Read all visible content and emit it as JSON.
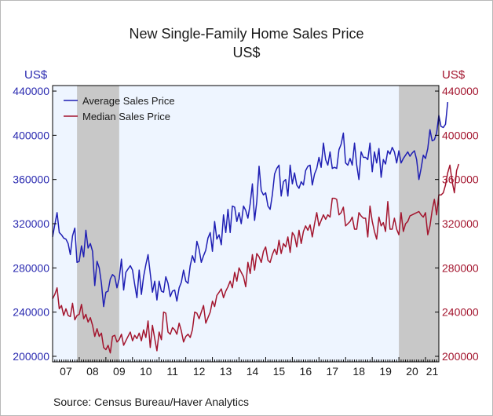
{
  "chart_data": {
    "type": "line",
    "title": "New Single-Family Home Sales Price",
    "subtitle": "US$",
    "ylabel_left": "US$",
    "ylabel_right": "US$",
    "source": "Source:   Census Bureau/Haver Analytics",
    "x_tick_labels": [
      "07",
      "08",
      "09",
      "10",
      "11",
      "12",
      "13",
      "14",
      "15",
      "16",
      "17",
      "18",
      "19",
      "20",
      "21"
    ],
    "y_ticks": [
      200000,
      240000,
      280000,
      320000,
      360000,
      400000,
      440000
    ],
    "ylim": [
      195000,
      445000
    ],
    "xlim": [
      2007.0,
      2021.5
    ],
    "recessions": [
      [
        2007.917,
        2009.5
      ],
      [
        2020.0,
        2021.5
      ]
    ],
    "legend_position": "top-left",
    "grid": false,
    "colors": {
      "average": "#1f1fb4",
      "median": "#a3152e",
      "left_axis": "#2a2ab0",
      "right_axis": "#a3152e",
      "plot_bg": "#eef5ff",
      "recession": "#c8c8c8"
    },
    "start_year": 2007.0,
    "step_years": 0.0833333,
    "series": [
      {
        "name": "Average Sales Price",
        "values": [
          308000,
          319000,
          330000,
          312000,
          310000,
          307000,
          306000,
          302000,
          292000,
          309000,
          316000,
          285000,
          286000,
          300000,
          290000,
          314000,
          298000,
          302000,
          295000,
          264000,
          286000,
          280000,
          266000,
          245000,
          258000,
          259000,
          270000,
          274000,
          272000,
          262000,
          270000,
          288000,
          260000,
          276000,
          279000,
          282000,
          278000,
          265000,
          253000,
          278000,
          256000,
          272000,
          283000,
          292000,
          275000,
          258000,
          268000,
          251000,
          268000,
          259000,
          258000,
          272000,
          266000,
          254000,
          259000,
          260000,
          250000,
          262000,
          267000,
          278000,
          268000,
          266000,
          282000,
          291000,
          285000,
          304000,
          297000,
          285000,
          291000,
          296000,
          307000,
          312000,
          295000,
          322000,
          306000,
          310000,
          301000,
          328000,
          312000,
          333000,
          312000,
          336000,
          335000,
          322000,
          330000,
          320000,
          336000,
          332000,
          325000,
          338000,
          356000,
          323000,
          340000,
          372000,
          350000,
          346000,
          348000,
          336000,
          333000,
          346000,
          365000,
          370000,
          373000,
          345000,
          358000,
          360000,
          345000,
          373000,
          356000,
          366000,
          355000,
          352000,
          358000,
          355000,
          368000,
          372000,
          373000,
          355000,
          365000,
          370000,
          380000,
          371000,
          393000,
          378000,
          373000,
          385000,
          370000,
          371000,
          370000,
          387000,
          392000,
          402000,
          375000,
          373000,
          379000,
          373000,
          393000,
          373000,
          360000,
          385000,
          380000,
          380000,
          378000,
          393000,
          367000,
          385000,
          375000,
          388000,
          362000,
          378000,
          374000,
          386000,
          383000,
          389000,
          385000,
          375000,
          386000,
          375000,
          379000,
          382000,
          385000,
          381000,
          384000,
          386000,
          378000,
          360000,
          370000,
          382000,
          379000,
          388000,
          405000,
          395000,
          396000,
          402000,
          418000,
          408000,
          407000,
          410000,
          430000
        ]
      },
      {
        "name": "Median Sales Price",
        "values": [
          252000,
          256000,
          262000,
          243000,
          246000,
          237000,
          243000,
          237000,
          236000,
          248000,
          233000,
          237000,
          238000,
          247000,
          234000,
          238000,
          231000,
          235000,
          228000,
          218000,
          225000,
          218000,
          221000,
          208000,
          206000,
          210000,
          203000,
          218000,
          219000,
          213000,
          215000,
          220000,
          210000,
          214000,
          218000,
          222000,
          214000,
          219000,
          216000,
          221000,
          214000,
          224000,
          217000,
          232000,
          208000,
          228000,
          216000,
          205000,
          222000,
          215000,
          240000,
          239000,
          222000,
          220000,
          226000,
          224000,
          220000,
          230000,
          223000,
          213000,
          218000,
          220000,
          217000,
          224000,
          240000,
          239000,
          234000,
          240000,
          246000,
          230000,
          235000,
          240000,
          250000,
          245000,
          255000,
          258000,
          261000,
          253000,
          259000,
          263000,
          268000,
          262000,
          276000,
          268000,
          280000,
          276000,
          272000,
          263000,
          285000,
          275000,
          292000,
          278000,
          293000,
          290000,
          285000,
          295000,
          299000,
          287000,
          285000,
          292000,
          297000,
          292000,
          305000,
          293000,
          302000,
          299000,
          308000,
          294000,
          312000,
          309000,
          299000,
          314000,
          302000,
          313000,
          318000,
          314000,
          319000,
          308000,
          320000,
          330000,
          318000,
          323000,
          328000,
          324000,
          328000,
          326000,
          343000,
          343000,
          342000,
          328000,
          330000,
          335000,
          318000,
          320000,
          322000,
          326000,
          315000,
          315000,
          330000,
          327000,
          325000,
          325000,
          308000,
          336000,
          322000,
          313000,
          306000,
          326000,
          318000,
          321000,
          313000,
          340000,
          315000,
          315000,
          325000,
          315000,
          310000,
          330000,
          313000,
          320000,
          322000,
          327000,
          328000,
          329000,
          330000,
          331000,
          328000,
          326000,
          330000,
          310000,
          318000,
          332000,
          342000,
          328000,
          346000,
          346000,
          348000,
          355000,
          366000,
          373000,
          358000,
          348000,
          368000,
          374000
        ]
      }
    ]
  }
}
